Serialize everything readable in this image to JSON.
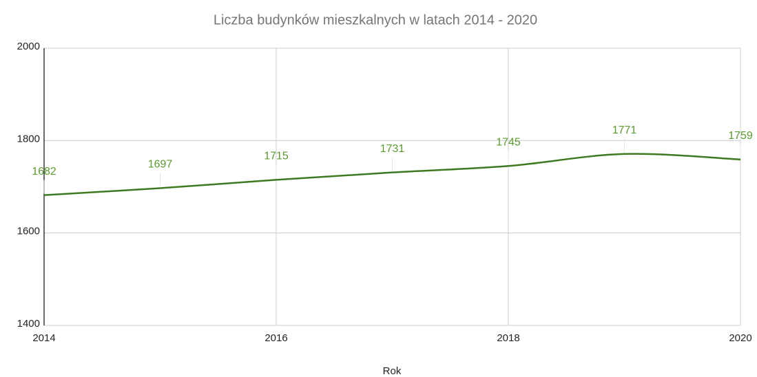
{
  "chart_data": {
    "type": "line",
    "title": "Liczba budynków mieszkalnych w latach 2014 - 2020",
    "xlabel": "Rok",
    "x": [
      2014,
      2015,
      2016,
      2017,
      2018,
      2019,
      2020
    ],
    "series": [
      {
        "name": "Liczba budynków",
        "color": "#3b7a1f",
        "values": [
          1682,
          1697,
          1715,
          1731,
          1745,
          1771,
          1759
        ]
      }
    ],
    "xlim": [
      2014,
      2020
    ],
    "xticks": [
      2014,
      2016,
      2018,
      2020
    ],
    "ylim": [
      1400,
      2000
    ],
    "yticks": [
      1400,
      1600,
      1800,
      2000
    ],
    "grid": true
  }
}
